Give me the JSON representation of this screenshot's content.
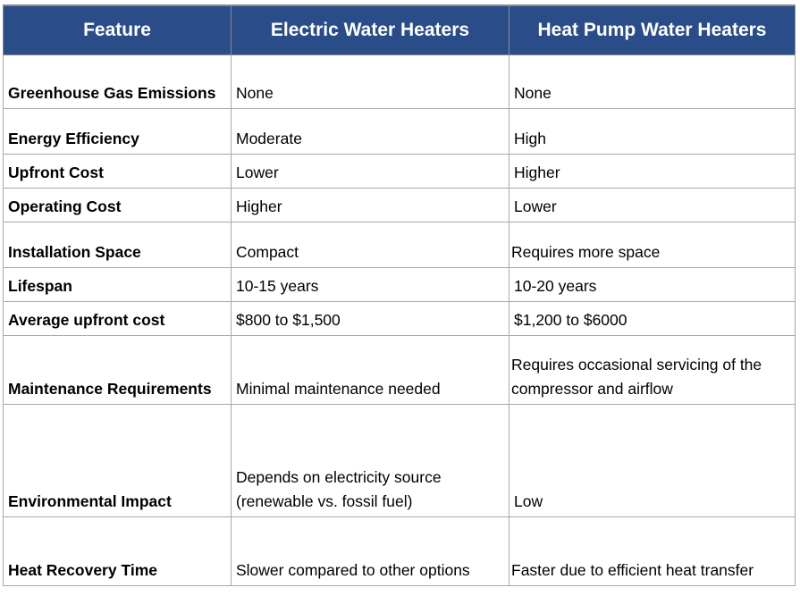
{
  "table": {
    "headers": [
      "Feature",
      "Electric Water Heaters",
      "Heat Pump Water Heaters"
    ],
    "rows": [
      {
        "feature": "Greenhouse Gas Emissions",
        "electric": "None",
        "heat_pump": "None"
      },
      {
        "feature": "Energy Efficiency",
        "electric": "Moderate",
        "heat_pump": "High"
      },
      {
        "feature": "Upfront Cost",
        "electric": "Lower",
        "heat_pump": "Higher"
      },
      {
        "feature": "Operating Cost",
        "electric": "Higher",
        "heat_pump": "Lower"
      },
      {
        "feature": "Installation Space",
        "electric": "Compact",
        "heat_pump": "Requires more space"
      },
      {
        "feature": "Lifespan",
        "electric": "10-15 years",
        "heat_pump": "10-20 years"
      },
      {
        "feature": "Average upfront cost",
        "electric": "$800 to $1,500",
        "heat_pump": "$1,200 to $6000"
      },
      {
        "feature": "Maintenance Requirements",
        "electric": "Minimal maintenance needed",
        "heat_pump": "Requires occasional servicing of the compressor and airflow"
      },
      {
        "feature": "Environmental Impact",
        "electric": "Depends on electricity source (renewable vs. fossil fuel)",
        "heat_pump": "Low"
      },
      {
        "feature": "Heat Recovery Time",
        "electric": "Slower compared to other options",
        "heat_pump": "Faster due to efficient heat transfer"
      }
    ]
  },
  "colors": {
    "header_background": "#2a4c88",
    "header_text": "#ffffff",
    "border": "#a9a9a9"
  }
}
